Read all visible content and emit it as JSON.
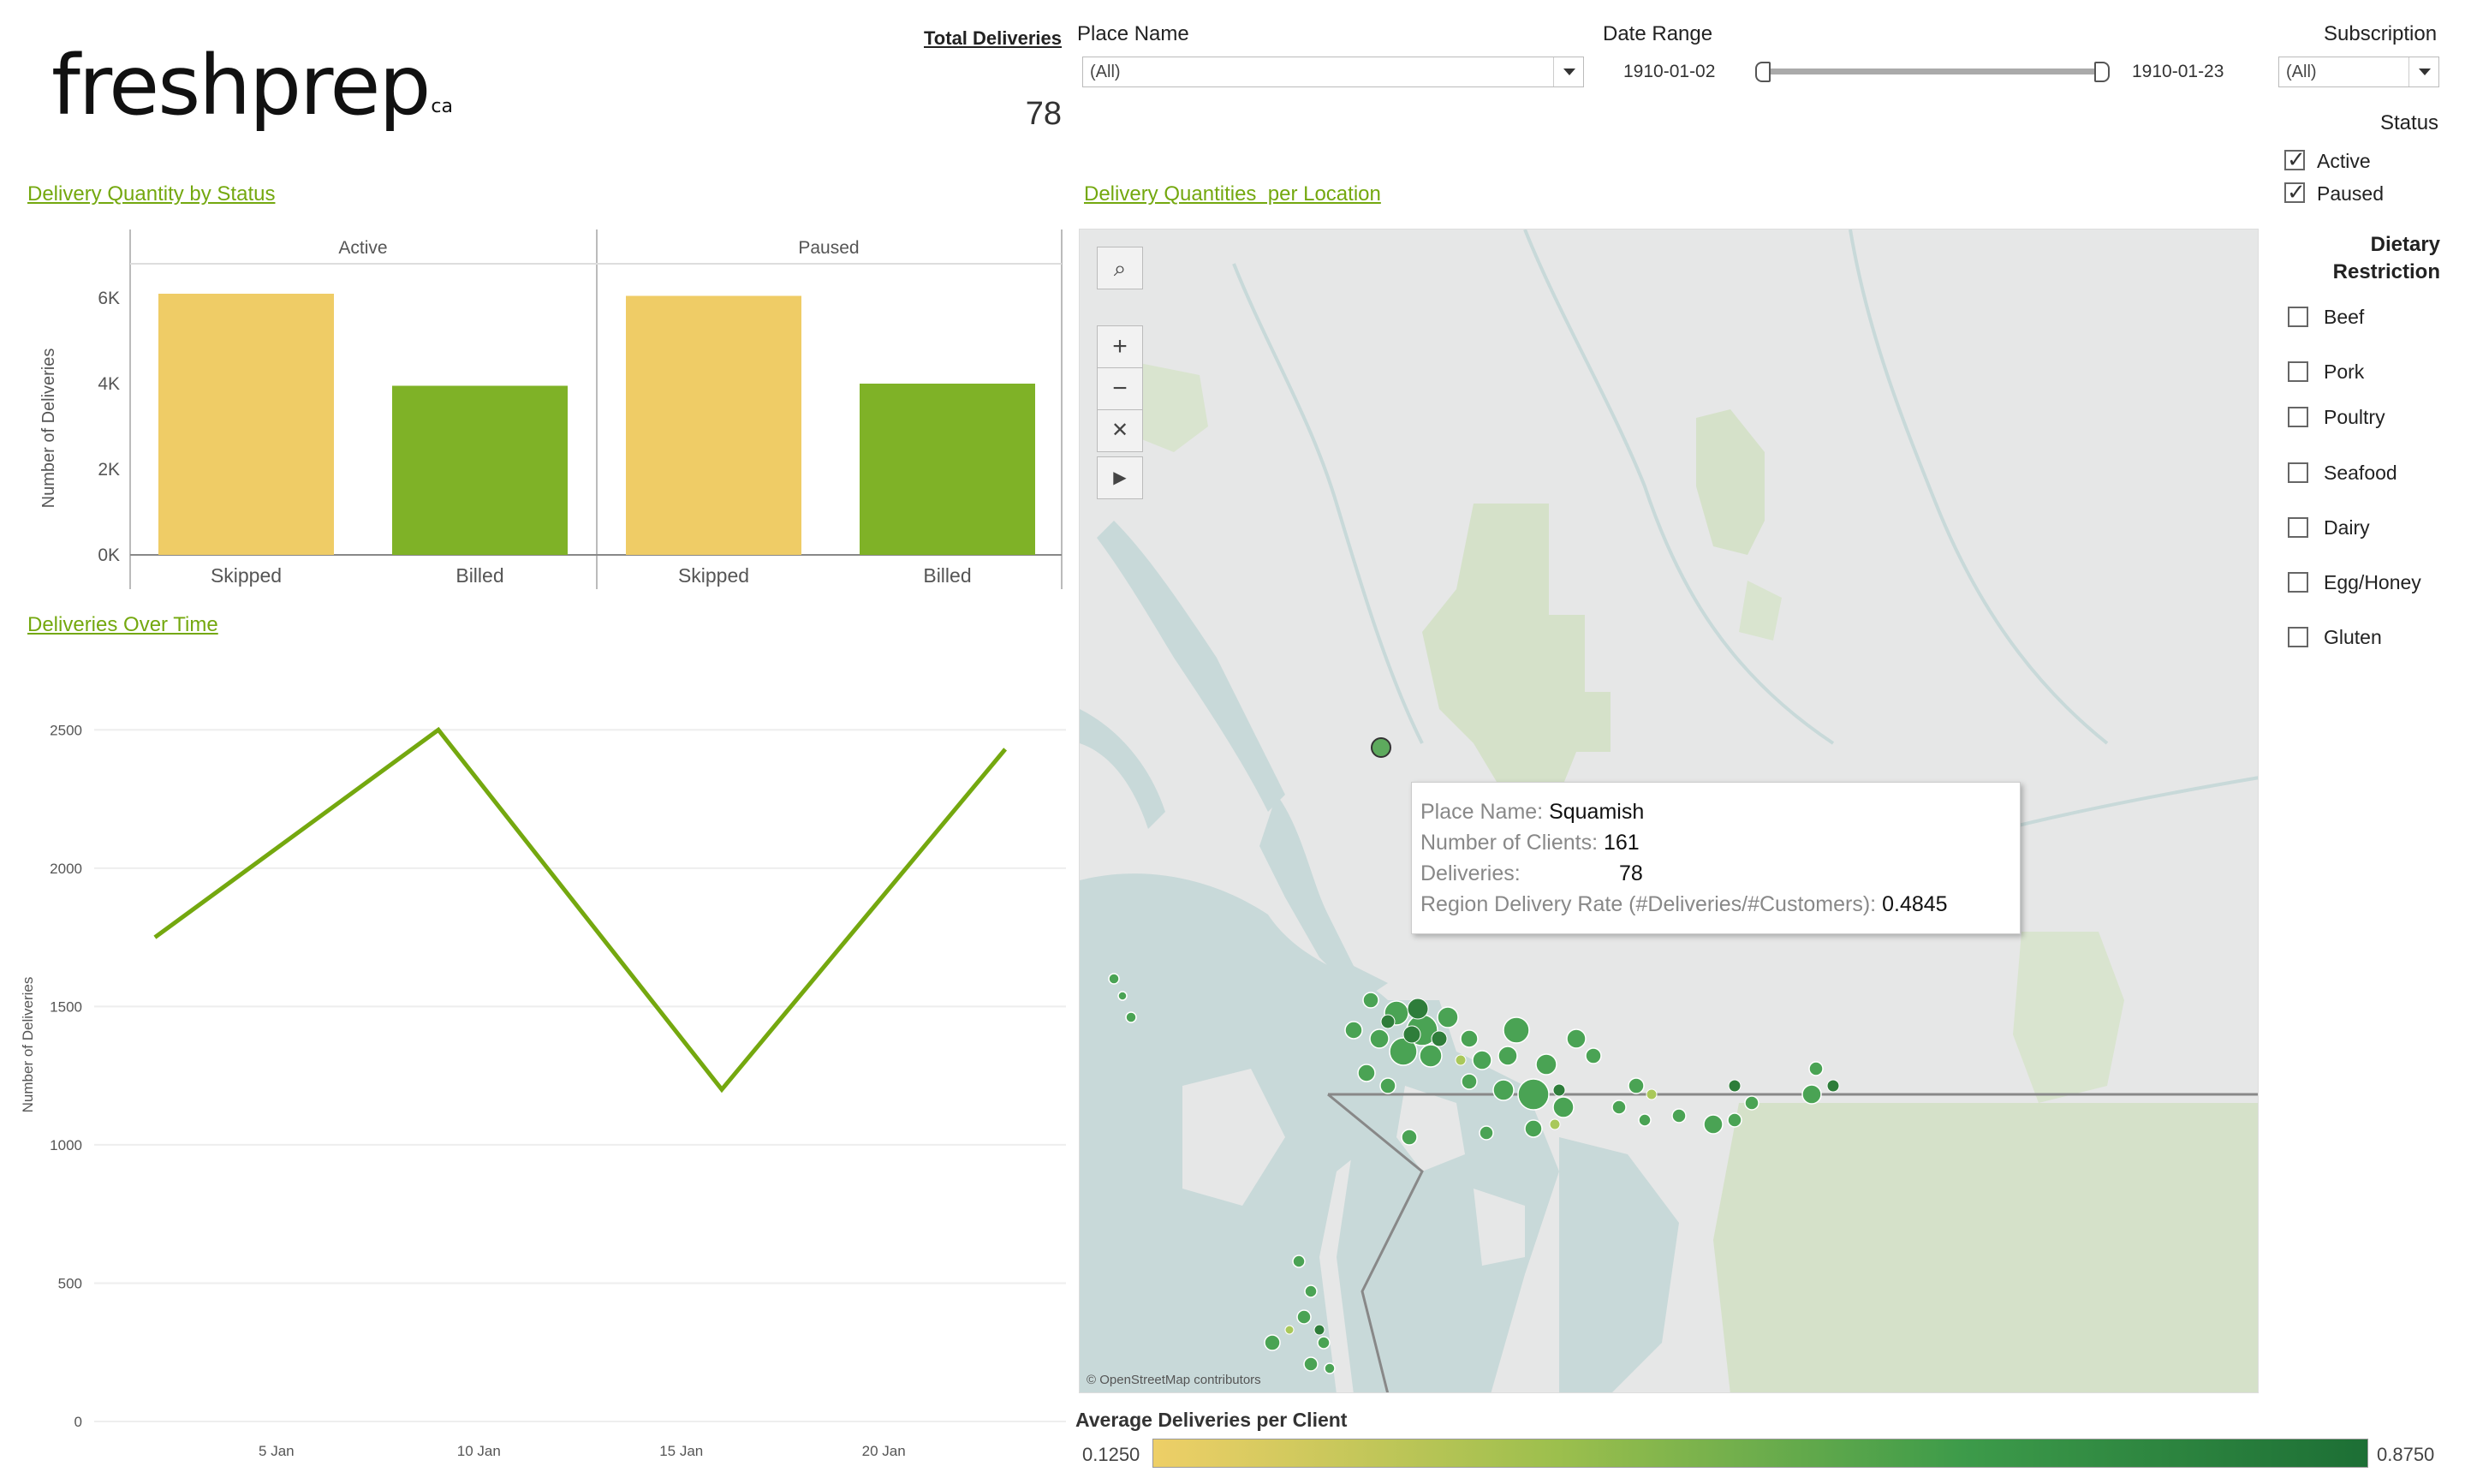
{
  "logo": {
    "text": "freshprep",
    "suffix": "ca"
  },
  "kpi": {
    "label": "Total Deliveries",
    "value": "78"
  },
  "filters": {
    "place_name": {
      "label": "Place Name",
      "value": "(All)"
    },
    "date_range": {
      "label": "Date Range",
      "start": "1910-01-02",
      "end": "1910-01-23"
    },
    "subscription": {
      "label": "Subscription",
      "value": "(All)"
    },
    "status": {
      "label": "Status",
      "options": [
        {
          "label": "Active",
          "checked": true
        },
        {
          "label": "Paused",
          "checked": true
        }
      ]
    },
    "dietary": {
      "label_line1": "Dietary",
      "label_line2": "Restriction",
      "options": [
        {
          "label": "Beef",
          "checked": false
        },
        {
          "label": "Pork",
          "checked": false
        },
        {
          "label": "Poultry",
          "checked": false
        },
        {
          "label": "Seafood",
          "checked": false
        },
        {
          "label": "Dairy",
          "checked": false
        },
        {
          "label": "Egg/Honey",
          "checked": false
        },
        {
          "label": "Gluten",
          "checked": false
        }
      ]
    }
  },
  "sections": {
    "status_chart": "Delivery Quantity by Status",
    "time_chart": "Deliveries Over Time",
    "map": "Delivery Quantities  per Location"
  },
  "chart_data": [
    {
      "type": "bar",
      "title": "Delivery Quantity by Status",
      "ylabel": "Number of Deliveries",
      "panels": [
        "Active",
        "Paused"
      ],
      "categories": [
        "Skipped",
        "Billed"
      ],
      "series": [
        {
          "panel": "Active",
          "values": [
            6100,
            3950
          ]
        },
        {
          "panel": "Paused",
          "values": [
            6050,
            4000
          ]
        }
      ],
      "colors": [
        "#efcc66",
        "#7fb227"
      ],
      "ylim": [
        0,
        6800
      ],
      "yticks": [
        0,
        2000,
        4000,
        6000
      ],
      "ytick_labels": [
        "0K",
        "2K",
        "4K",
        "6K"
      ]
    },
    {
      "type": "line",
      "title": "Deliveries Over Time",
      "ylabel": "Number of Deliveries",
      "x": [
        "1910-01-02",
        "1910-01-09",
        "1910-01-16",
        "1910-01-23"
      ],
      "values": [
        1750,
        2500,
        1200,
        2430
      ],
      "xticks": [
        "5 Jan",
        "10 Jan",
        "15 Jan",
        "20 Jan"
      ],
      "yticks": [
        0,
        500,
        1000,
        1500,
        2000,
        2500
      ],
      "ylim": [
        0,
        2600
      ],
      "color": "#74a80f",
      "grid": true
    }
  ],
  "map": {
    "attribution": "© OpenStreetMap contributors",
    "tooltip": {
      "place_label": "Place Name:",
      "place_value": "Squamish",
      "clients_label": "Number of Clients:",
      "clients_value": "161",
      "deliveries_label": "Deliveries:",
      "deliveries_value": "78",
      "rate_label": "Region Delivery Rate (#Deliveries/#Customers):",
      "rate_value": "0.4845"
    },
    "tools": [
      "search-icon",
      "zoom-in-icon",
      "zoom-out-icon",
      "pin-icon",
      "play-icon"
    ]
  },
  "legend": {
    "title": "Average Deliveries per Client",
    "min": "0.1250",
    "max": "0.8750",
    "color_low": "#eecf67",
    "color_high": "#1d6f35"
  }
}
